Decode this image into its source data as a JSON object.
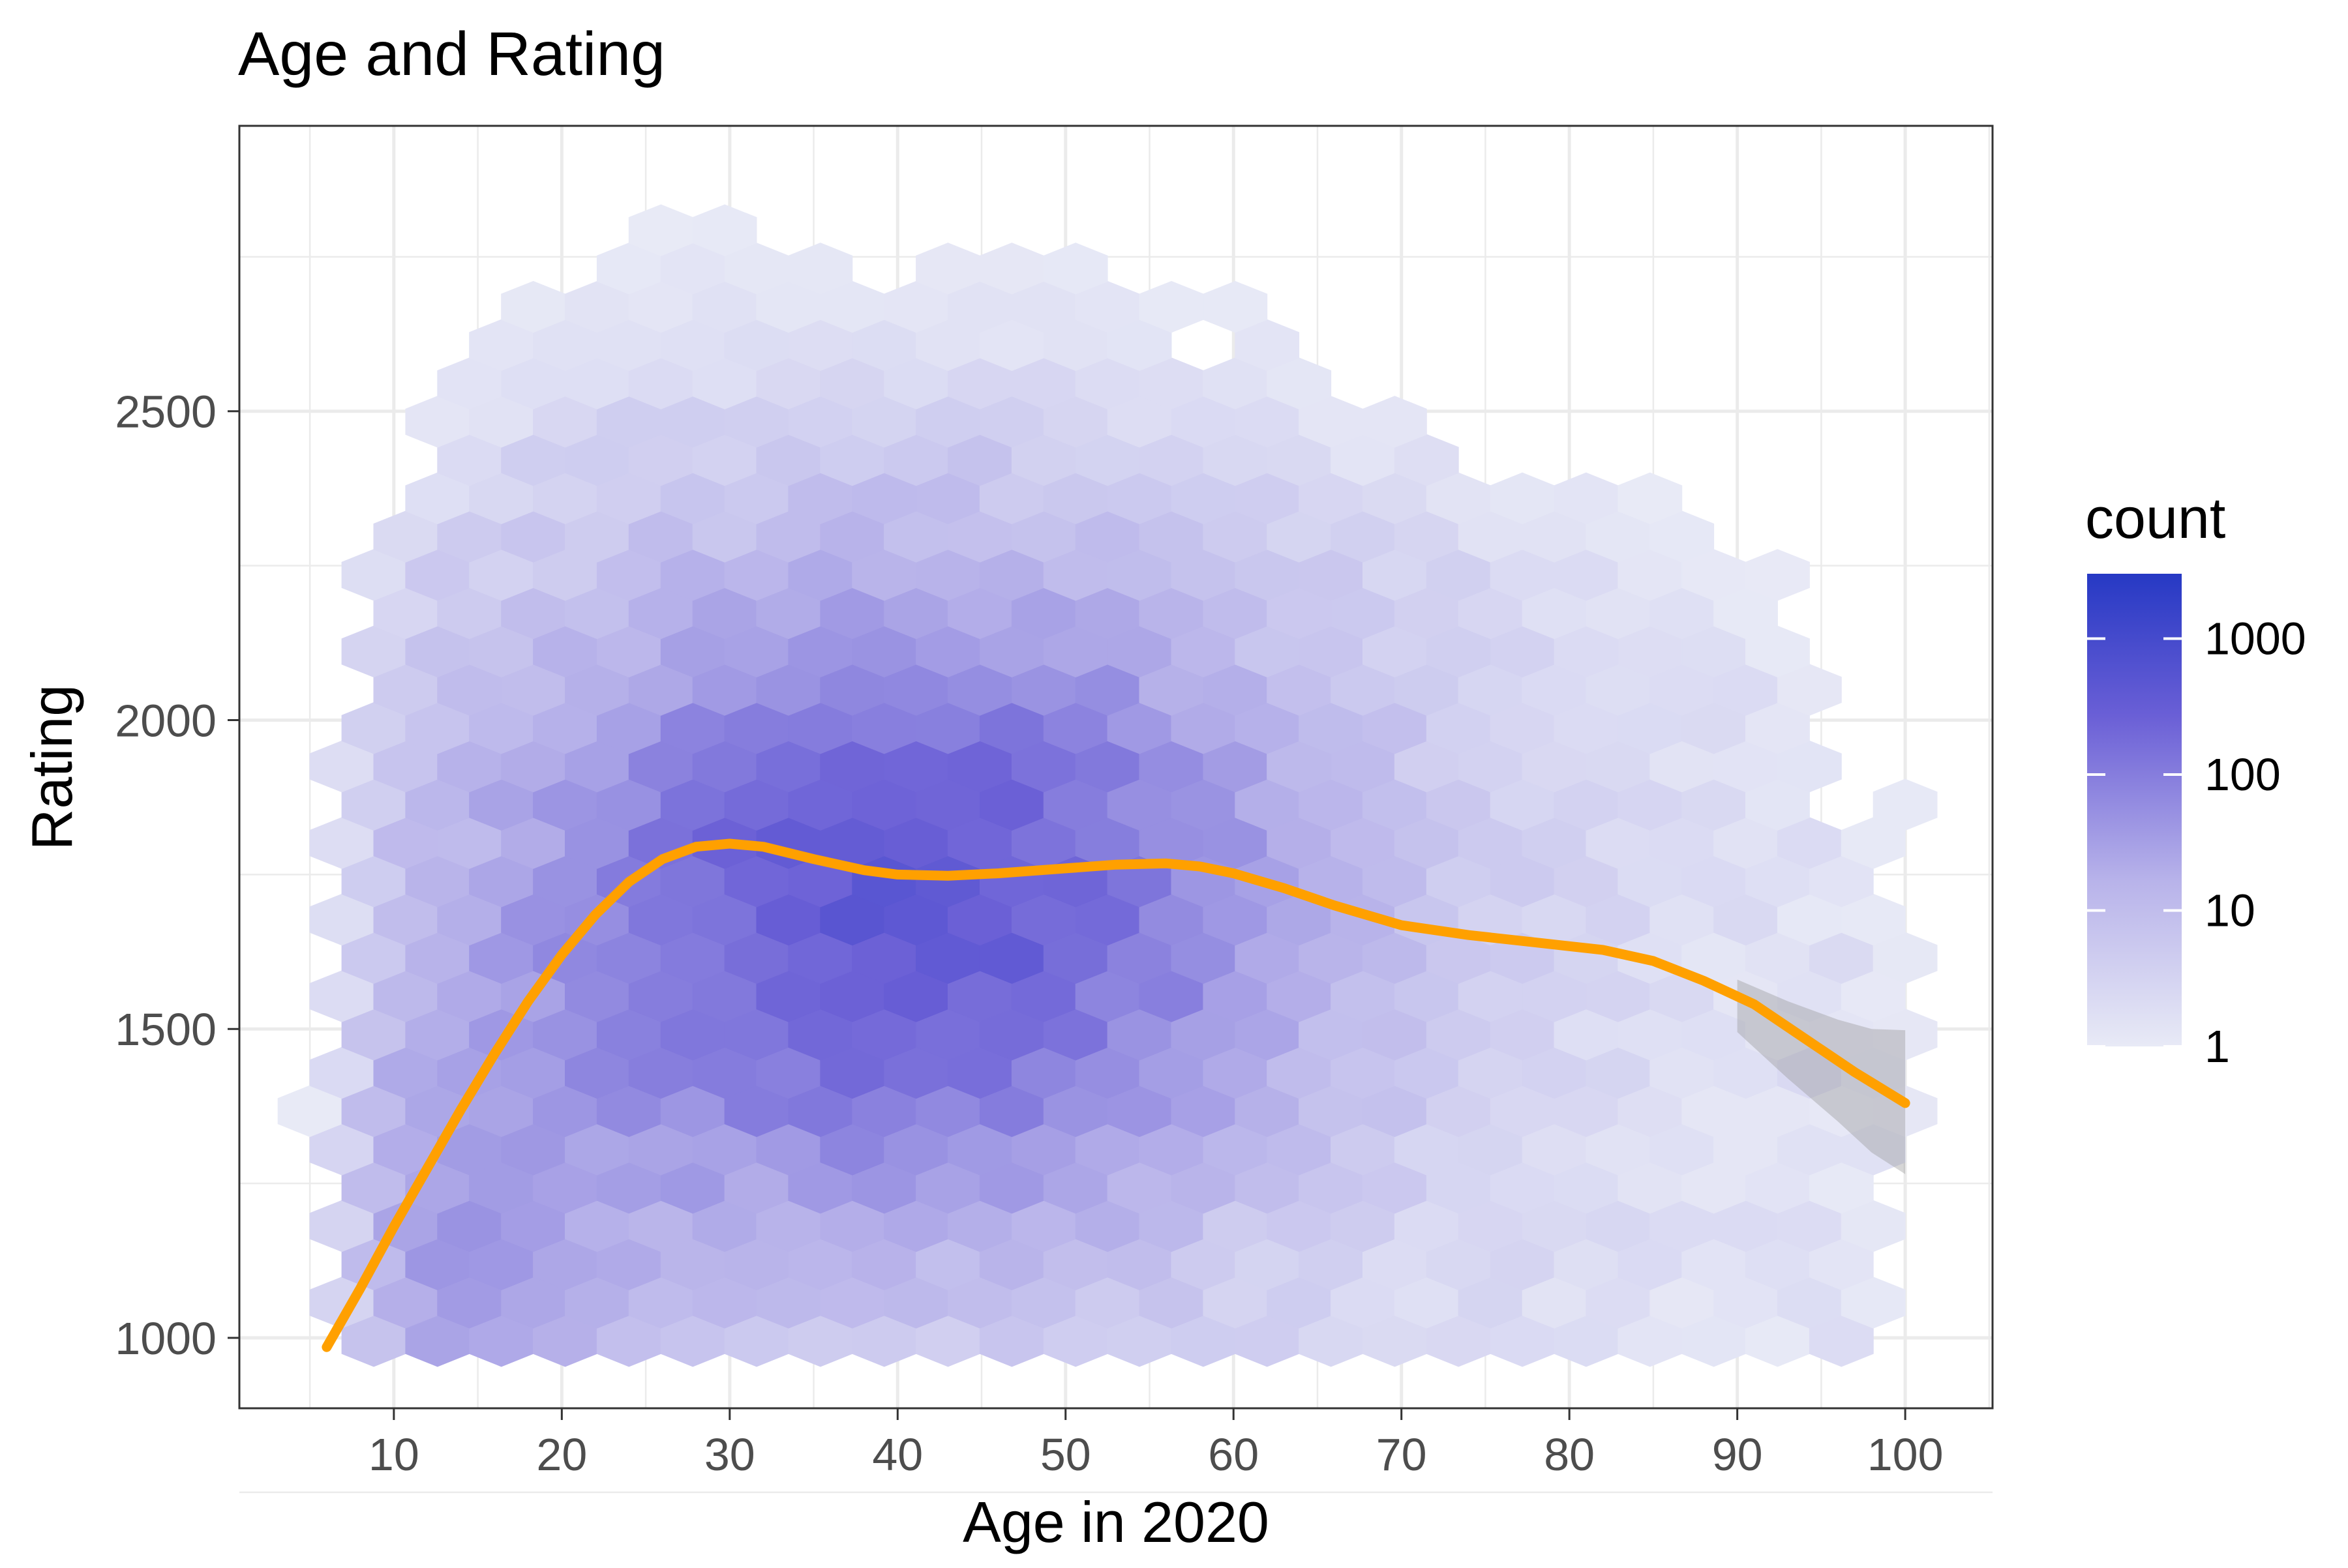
{
  "chart_data": {
    "type": "heatmap",
    "subtype": "hexbin",
    "title": "Age and Rating",
    "xlabel": "Age in 2020",
    "ylabel": "Rating",
    "xlim": [
      0.8,
      105.2
    ],
    "ylim": [
      886,
      2962
    ],
    "x_ticks": [
      10,
      20,
      30,
      40,
      50,
      60,
      70,
      80,
      90,
      100
    ],
    "y_ticks": [
      1000,
      1500,
      2000,
      2500
    ],
    "grid": true,
    "hex_size": {
      "x_spacing": 1.9,
      "y_spacing": 62
    },
    "data_extent": {
      "age": [
        5,
        101
      ],
      "rating_bottom": 995,
      "rating_top_profile": [
        [
          6,
          1760
        ],
        [
          8,
          2400
        ],
        [
          10,
          2460
        ],
        [
          14,
          2640
        ],
        [
          18,
          2760
        ],
        [
          22,
          2780
        ],
        [
          26,
          2800
        ],
        [
          28,
          2900
        ],
        [
          30,
          2800
        ],
        [
          36,
          2780
        ],
        [
          44,
          2780
        ],
        [
          52,
          2780
        ],
        [
          58,
          2660
        ],
        [
          62,
          2720
        ],
        [
          66,
          2580
        ],
        [
          70,
          2640
        ],
        [
          76,
          2470
        ],
        [
          80,
          2500
        ],
        [
          86,
          2340
        ],
        [
          90,
          2320
        ],
        [
          94,
          2200
        ],
        [
          96,
          1920
        ],
        [
          100,
          1880
        ],
        [
          102,
          1880
        ]
      ]
    },
    "density_peak": {
      "age": 12,
      "rating": 1100
    },
    "legend": {
      "title": "count",
      "scale": "log",
      "labels": [
        "1000",
        "100",
        "10",
        "1"
      ],
      "values": [
        1000,
        100,
        10,
        1
      ],
      "range": [
        1,
        3000
      ],
      "colors": {
        "low": "#e8eaf6",
        "high": "#2639c4"
      },
      "position": "right"
    },
    "smooth_line": {
      "color": "#ffa000",
      "x": [
        6,
        8,
        10,
        12,
        14,
        16,
        18,
        20,
        22,
        24,
        26,
        28,
        30,
        32,
        35,
        38,
        40,
        43,
        46,
        50,
        53,
        56,
        58,
        60,
        63,
        66,
        70,
        74,
        78,
        82,
        85,
        88,
        91,
        94,
        97,
        100
      ],
      "y": [
        985,
        1080,
        1180,
        1275,
        1370,
        1460,
        1545,
        1620,
        1685,
        1738,
        1775,
        1795,
        1800,
        1795,
        1775,
        1757,
        1750,
        1748,
        1752,
        1760,
        1766,
        1768,
        1763,
        1752,
        1728,
        1700,
        1668,
        1652,
        1640,
        1628,
        1610,
        1578,
        1540,
        1485,
        1430,
        1380
      ]
    },
    "confidence_band": {
      "color": "#999999",
      "x": [
        90,
        93,
        96,
        98,
        100
      ],
      "upper": [
        1580,
        1545,
        1515,
        1500,
        1498
      ],
      "lower": [
        1495,
        1420,
        1350,
        1300,
        1265
      ]
    }
  },
  "colors": {
    "panel_border": "#333333",
    "grid": "#ebebeb",
    "axis_text": "#4d4d4d",
    "text": "#000000"
  }
}
